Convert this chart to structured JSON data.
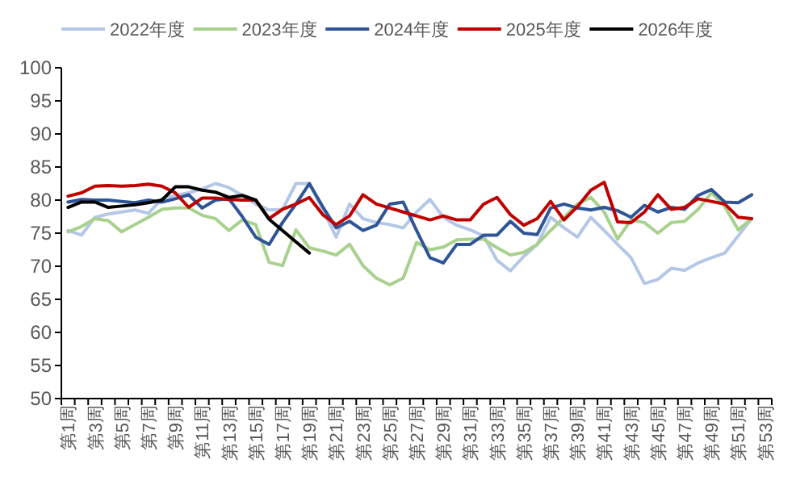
{
  "chart_data": {
    "type": "line",
    "categories": [
      "第1周",
      null,
      "第3周",
      null,
      "第5周",
      null,
      "第7周",
      null,
      "第9周",
      null,
      "第11周",
      null,
      "第13周",
      null,
      "第15周",
      null,
      "第17周",
      null,
      "第19周",
      null,
      "第21周",
      null,
      "第23周",
      null,
      "第25周",
      null,
      "第27周",
      null,
      "第29周",
      null,
      "第31周",
      null,
      "第33周",
      null,
      "第35周",
      null,
      "第37周",
      null,
      "第39周",
      null,
      "第41周",
      null,
      "第43周",
      null,
      "第45周",
      null,
      "第47周",
      null,
      "第49周",
      null,
      "第51周",
      null,
      "第53周"
    ],
    "series": [
      {
        "name": "2022年度",
        "color": "#b4c7e7",
        "values": [
          75.4,
          74.7,
          77.4,
          77.9,
          78.2,
          78.5,
          78,
          80.2,
          80.7,
          81.1,
          81.7,
          82.5,
          81.9,
          80.7,
          79.4,
          78.5,
          78.6,
          82.5,
          82.5,
          78.6,
          74.4,
          79.4,
          77.2,
          76.6,
          76.3,
          75.8,
          78.2,
          80.1,
          77.4,
          76.2,
          75.5,
          74.6,
          70.9,
          69.3,
          71.5,
          73.3,
          77.4,
          75.8,
          74.4,
          77.4,
          75.4,
          73.3,
          71.3,
          67.4,
          68,
          69.7,
          69.4,
          70.5,
          71.3,
          72,
          74.6,
          77.2,
          null
        ]
      },
      {
        "name": "2023年度",
        "color": "#a9d18e",
        "values": [
          75.2,
          76,
          77.2,
          76.9,
          75.2,
          76.3,
          77.4,
          78.6,
          78.8,
          78.8,
          77.7,
          77.2,
          75.4,
          77,
          76.3,
          70.6,
          70.1,
          75.5,
          72.8,
          72.3,
          71.7,
          73.3,
          70.1,
          68.2,
          67.2,
          68.2,
          73.6,
          72.5,
          72.9,
          74,
          74.1,
          74.1,
          72.8,
          71.7,
          72.1,
          73.3,
          75.4,
          77.4,
          79.4,
          80.4,
          78.2,
          74.1,
          77,
          76.6,
          75,
          76.6,
          76.8,
          78.6,
          81.1,
          79,
          75.5,
          77.2,
          null
        ]
      },
      {
        "name": "2024年度",
        "color": "#2f5597",
        "values": [
          79.7,
          80.1,
          80,
          80,
          79.8,
          79.6,
          80,
          79.7,
          80.2,
          80.8,
          78.8,
          80,
          80.2,
          77.5,
          74.4,
          73.3,
          76.6,
          79.4,
          82.5,
          79,
          75.8,
          76.8,
          75.4,
          76.2,
          79.4,
          79.7,
          75.4,
          71.3,
          70.5,
          73.3,
          73.3,
          74.7,
          74.7,
          76.8,
          75,
          74.8,
          78.8,
          79.4,
          78.8,
          78.5,
          78.9,
          78.4,
          77.4,
          79.2,
          78.2,
          78.9,
          78.6,
          80.7,
          81.6,
          79.7,
          79.6,
          80.8,
          null
        ]
      },
      {
        "name": "2025年度",
        "color": "#c00000",
        "values": [
          80.6,
          81.1,
          82.1,
          82.2,
          82.1,
          82.2,
          82.4,
          82.1,
          81.1,
          78.9,
          80.3,
          80.3,
          80.1,
          80,
          80,
          77.2,
          78.6,
          79.4,
          80.4,
          77.8,
          76.3,
          77.6,
          80.8,
          79.4,
          78.8,
          78.2,
          77.6,
          77,
          77.6,
          77,
          77,
          79.4,
          80.4,
          77.8,
          76.2,
          77.2,
          79.8,
          77,
          79,
          81.5,
          82.7,
          76.7,
          76.6,
          78.2,
          80.8,
          78.6,
          78.9,
          80.2,
          79.8,
          79.4,
          77.4,
          77.2,
          null
        ]
      },
      {
        "name": "2026年度",
        "color": "#000000",
        "values": [
          78.9,
          79.7,
          79.7,
          78.9,
          79.1,
          79.3,
          79.6,
          80,
          82,
          82,
          81.5,
          81.2,
          80.4,
          80.7,
          80,
          77.1,
          75.4,
          73.7,
          72,
          null,
          null,
          null,
          null,
          null,
          null,
          null,
          null,
          null,
          null,
          null,
          null,
          null,
          null,
          null,
          null,
          null,
          null,
          null,
          null,
          null,
          null,
          null,
          null,
          null,
          null,
          null,
          null,
          null,
          null,
          null,
          null,
          null,
          null
        ]
      }
    ],
    "ylim": [
      50,
      100
    ],
    "yticks": [
      50,
      55,
      60,
      65,
      70,
      75,
      80,
      85,
      90,
      95,
      100
    ],
    "grid": false,
    "legend": "top",
    "marker": "none",
    "line_style": "solid"
  }
}
